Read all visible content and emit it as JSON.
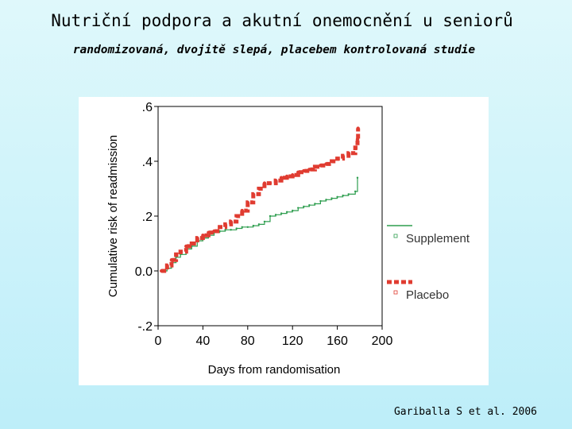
{
  "slide": {
    "title": "Nutriční podpora a akutní onemocnění u seniorů",
    "subtitle": "randomizovaná, dvojitě slepá, placebem kontrolovaná studie",
    "citation": "Gariballa S et al. 2006"
  },
  "chart_data": {
    "type": "line",
    "xlabel": "Days from randomisation",
    "ylabel": "Cumulative risk of readmission",
    "xlim": [
      0,
      200
    ],
    "ylim": [
      -0.2,
      0.6
    ],
    "xticks": [
      0,
      40,
      80,
      120,
      160,
      200
    ],
    "xtick_labels": [
      "0",
      "40",
      "80",
      "120",
      "160",
      "200"
    ],
    "yticks": [
      -0.2,
      0,
      0.2,
      0.4,
      0.6
    ],
    "ytick_labels": [
      "-.2",
      "0.0",
      ".2",
      ".4",
      ".6"
    ],
    "grid": false,
    "legend_position": "right",
    "series": [
      {
        "name": "Supplement",
        "color": "#2e9e4f",
        "style": "solid",
        "x": [
          3,
          8,
          12,
          16,
          20,
          25,
          30,
          35,
          40,
          45,
          50,
          55,
          60,
          65,
          70,
          75,
          80,
          85,
          90,
          95,
          100,
          105,
          110,
          115,
          120,
          125,
          130,
          135,
          140,
          145,
          150,
          155,
          160,
          165,
          170,
          176,
          178
        ],
        "y": [
          0.0,
          0.01,
          0.03,
          0.05,
          0.06,
          0.08,
          0.09,
          0.11,
          0.12,
          0.13,
          0.14,
          0.145,
          0.15,
          0.15,
          0.155,
          0.16,
          0.16,
          0.165,
          0.17,
          0.18,
          0.2,
          0.205,
          0.21,
          0.215,
          0.22,
          0.23,
          0.235,
          0.24,
          0.245,
          0.255,
          0.26,
          0.265,
          0.27,
          0.275,
          0.28,
          0.29,
          0.34
        ]
      },
      {
        "name": "Placebo",
        "color": "#e03c31",
        "style": "dashed",
        "x": [
          3,
          8,
          12,
          16,
          20,
          25,
          30,
          35,
          40,
          45,
          50,
          55,
          60,
          65,
          70,
          75,
          80,
          85,
          90,
          95,
          100,
          105,
          110,
          115,
          120,
          125,
          130,
          135,
          140,
          145,
          150,
          155,
          160,
          165,
          170,
          176,
          178,
          178.5
        ],
        "y": [
          0.0,
          0.02,
          0.04,
          0.06,
          0.07,
          0.09,
          0.1,
          0.12,
          0.13,
          0.14,
          0.145,
          0.16,
          0.17,
          0.18,
          0.2,
          0.22,
          0.25,
          0.28,
          0.3,
          0.32,
          0.32,
          0.33,
          0.34,
          0.345,
          0.35,
          0.36,
          0.365,
          0.37,
          0.38,
          0.385,
          0.39,
          0.4,
          0.41,
          0.42,
          0.43,
          0.45,
          0.48,
          0.52
        ]
      }
    ]
  }
}
